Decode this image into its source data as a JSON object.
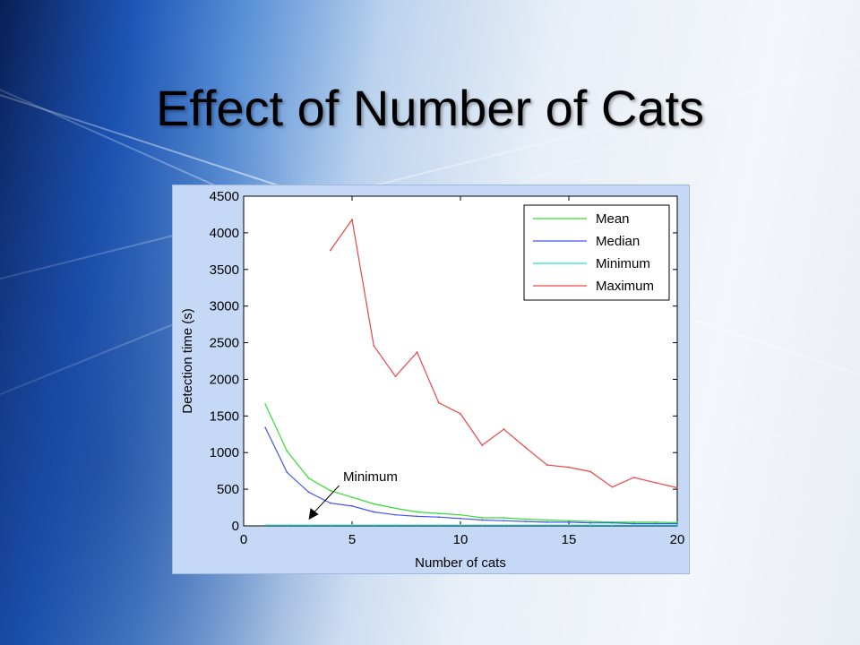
{
  "slide": {
    "title": "Effect of Number of Cats"
  },
  "chart_data": {
    "type": "line",
    "title": "",
    "xlabel": "Number of cats",
    "ylabel": "Detection time (s)",
    "xlim": [
      0,
      20
    ],
    "ylim": [
      0,
      4500
    ],
    "xticks": [
      0,
      5,
      10,
      15,
      20
    ],
    "yticks": [
      0,
      500,
      1000,
      1500,
      2000,
      2500,
      3000,
      3500,
      4000,
      4500
    ],
    "grid": false,
    "legend_position": "top-right",
    "series": [
      {
        "name": "Mean",
        "color": "#33dd33",
        "x": [
          1,
          2,
          3,
          4,
          5,
          6,
          7,
          8,
          9,
          10,
          11,
          12,
          13,
          14,
          15,
          16,
          17,
          18,
          19,
          20
        ],
        "y": [
          1660,
          1020,
          650,
          480,
          390,
          300,
          240,
          190,
          170,
          150,
          110,
          110,
          90,
          80,
          70,
          60,
          50,
          50,
          50,
          45
        ]
      },
      {
        "name": "Median",
        "color": "#4455ee",
        "x": [
          1,
          2,
          3,
          4,
          5,
          6,
          7,
          8,
          9,
          10,
          11,
          12,
          13,
          14,
          15,
          16,
          17,
          18,
          19,
          20
        ],
        "y": [
          1340,
          730,
          460,
          310,
          270,
          190,
          150,
          130,
          120,
          100,
          80,
          70,
          60,
          50,
          50,
          40,
          40,
          30,
          30,
          30
        ]
      },
      {
        "name": "Minimum",
        "color": "#22dddd",
        "x": [
          1,
          2,
          3,
          4,
          5,
          6,
          7,
          8,
          9,
          10,
          11,
          12,
          13,
          14,
          15,
          16,
          17,
          18,
          19,
          20
        ],
        "y": [
          10,
          10,
          10,
          10,
          10,
          10,
          10,
          10,
          10,
          10,
          10,
          10,
          10,
          10,
          10,
          10,
          10,
          10,
          10,
          10
        ]
      },
      {
        "name": "Maximum",
        "color": "#ee4444",
        "x": [
          4,
          5,
          6,
          7,
          8,
          9,
          10,
          11,
          12,
          13,
          14,
          15,
          16,
          17,
          18,
          19,
          20
        ],
        "y": [
          3760,
          4180,
          2460,
          2040,
          2370,
          1680,
          1530,
          1100,
          1320,
          1070,
          830,
          800,
          740,
          530,
          660,
          590,
          520
        ]
      }
    ],
    "annotations": [
      {
        "text": "Minimum",
        "target": {
          "x": 3,
          "y": 10
        }
      }
    ]
  }
}
